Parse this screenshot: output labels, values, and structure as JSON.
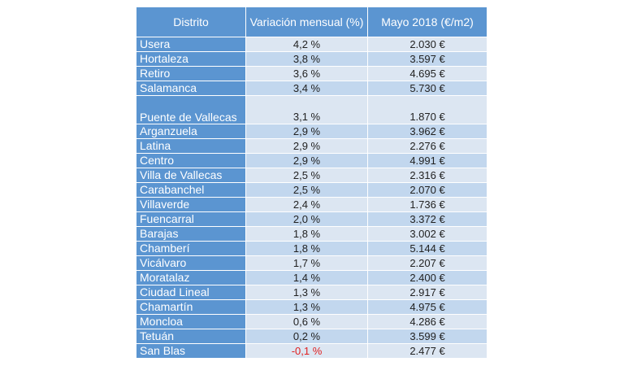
{
  "table": {
    "headers": [
      "Distrito",
      "Variación mensual (%)",
      "Mayo 2018 (€/m2)"
    ],
    "rows": [
      {
        "distrito": "Usera",
        "variacion": "4,2 %",
        "precio": "2.030 €"
      },
      {
        "distrito": "Hortaleza",
        "variacion": "3,8 %",
        "precio": "3.597 €"
      },
      {
        "distrito": "Retiro",
        "variacion": "3,6 %",
        "precio": "4.695 €"
      },
      {
        "distrito": "Salamanca",
        "variacion": "3,4 %",
        "precio": "5.730 €"
      },
      {
        "distrito": "Puente de Vallecas",
        "variacion": "3,1 %",
        "precio": "1.870 €"
      },
      {
        "distrito": "Arganzuela",
        "variacion": "2,9 %",
        "precio": "3.962 €"
      },
      {
        "distrito": "Latina",
        "variacion": "2,9 %",
        "precio": "2.276 €"
      },
      {
        "distrito": "Centro",
        "variacion": "2,9 %",
        "precio": "4.991 €"
      },
      {
        "distrito": "Villa de Vallecas",
        "variacion": "2,5 %",
        "precio": "2.316 €"
      },
      {
        "distrito": "Carabanchel",
        "variacion": "2,5 %",
        "precio": "2.070 €"
      },
      {
        "distrito": "Villaverde",
        "variacion": "2,4 %",
        "precio": "1.736 €"
      },
      {
        "distrito": "Fuencarral",
        "variacion": "2,0 %",
        "precio": "3.372 €"
      },
      {
        "distrito": "Barajas",
        "variacion": "1,8 %",
        "precio": "3.002 €"
      },
      {
        "distrito": "Chamberí",
        "variacion": "1,8 %",
        "precio": "5.144 €"
      },
      {
        "distrito": "Vicálvaro",
        "variacion": "1,7 %",
        "precio": "2.207 €"
      },
      {
        "distrito": "Moratalaz",
        "variacion": "1,4 %",
        "precio": "2.400 €"
      },
      {
        "distrito": "Ciudad Lineal",
        "variacion": "1,3 %",
        "precio": "2.917 €"
      },
      {
        "distrito": "Chamartín",
        "variacion": "1,3 %",
        "precio": "4.975 €"
      },
      {
        "distrito": "Moncloa",
        "variacion": "0,6 %",
        "precio": "4.286 €"
      },
      {
        "distrito": "Tetuán",
        "variacion": "0,2 %",
        "precio": "3.599 €"
      },
      {
        "distrito": "San Blas",
        "variacion": "-0,1 %",
        "precio": "2.477 €"
      }
    ]
  },
  "colors": {
    "header_bg": "#5b95d1",
    "row_light": "#dce6f2",
    "row_dark": "#c2d7ee",
    "negative": "#e02020"
  }
}
